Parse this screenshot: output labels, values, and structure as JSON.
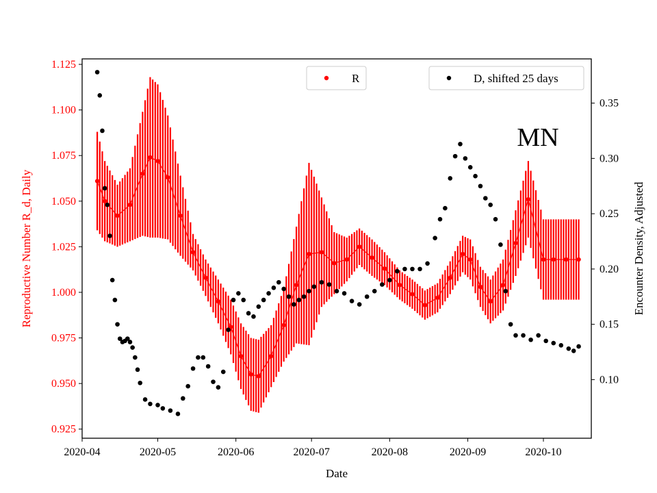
{
  "chart_data": {
    "type": "scatter",
    "xlabel": "Date",
    "ylabel_left": "Reproductive Number R_d, Daily",
    "ylabel_right": "Encounter Density, Adjusted",
    "annotation": "MN",
    "x_ticks": [
      "2020-04",
      "2020-05",
      "2020-06",
      "2020-07",
      "2020-08",
      "2020-09",
      "2020-10"
    ],
    "y_left_ticks": [
      "0.925",
      "0.950",
      "0.975",
      "1.000",
      "1.025",
      "1.050",
      "1.075",
      "1.100",
      "1.125"
    ],
    "y_right_ticks": [
      "0.10",
      "0.15",
      "0.20",
      "0.25",
      "0.30",
      "0.35"
    ],
    "ylim_left": [
      0.92,
      1.128
    ],
    "ylim_right": [
      0.047,
      0.39
    ],
    "xlim": [
      "2020-04-01",
      "2020-10-20"
    ],
    "grid": false,
    "colors": {
      "R": "#ff0000",
      "D": "#000000",
      "left_axis": "#ff0000"
    },
    "series": [
      {
        "name": "R",
        "axis": "left",
        "marker": "point with error bar",
        "legend": "top-center",
        "dates": [
          "2020-04-07",
          "2020-04-10",
          "2020-04-15",
          "2020-04-20",
          "2020-04-25",
          "2020-04-28",
          "2020-05-01",
          "2020-05-05",
          "2020-05-10",
          "2020-05-15",
          "2020-05-20",
          "2020-05-25",
          "2020-05-30",
          "2020-06-03",
          "2020-06-07",
          "2020-06-10",
          "2020-06-15",
          "2020-06-20",
          "2020-06-25",
          "2020-06-30",
          "2020-07-05",
          "2020-07-10",
          "2020-07-15",
          "2020-07-20",
          "2020-07-25",
          "2020-07-30",
          "2020-08-05",
          "2020-08-10",
          "2020-08-15",
          "2020-08-20",
          "2020-08-25",
          "2020-08-30",
          "2020-09-02",
          "2020-09-06",
          "2020-09-10",
          "2020-09-15",
          "2020-09-20",
          "2020-09-25",
          "2020-10-01",
          "2020-10-05",
          "2020-10-10",
          "2020-10-15"
        ],
        "values": [
          1.061,
          1.05,
          1.042,
          1.048,
          1.065,
          1.074,
          1.072,
          1.063,
          1.042,
          1.022,
          1.008,
          0.995,
          0.981,
          0.965,
          0.955,
          0.954,
          0.965,
          0.982,
          1.004,
          1.021,
          1.022,
          1.016,
          1.018,
          1.025,
          1.019,
          1.013,
          1.004,
          0.999,
          0.993,
          0.997,
          1.008,
          1.021,
          1.018,
          1.003,
          0.995,
          1.004,
          1.027,
          1.051,
          1.018,
          1.018,
          1.018,
          1.018
        ],
        "errors": [
          0.027,
          0.022,
          0.017,
          0.02,
          0.034,
          0.044,
          0.042,
          0.034,
          0.022,
          0.01,
          0.01,
          0.012,
          0.015,
          0.018,
          0.02,
          0.02,
          0.017,
          0.02,
          0.032,
          0.05,
          0.03,
          0.017,
          0.012,
          0.01,
          0.01,
          0.009,
          0.008,
          0.008,
          0.008,
          0.008,
          0.009,
          0.01,
          0.011,
          0.011,
          0.012,
          0.014,
          0.018,
          0.021,
          0.022,
          0.022,
          0.022,
          0.022
        ]
      },
      {
        "name": "D, shifted 25 days",
        "axis": "right",
        "marker": "point",
        "legend": "top-right",
        "dates": [
          "2020-04-07",
          "2020-04-08",
          "2020-04-09",
          "2020-04-10",
          "2020-04-11",
          "2020-04-12",
          "2020-04-13",
          "2020-04-14",
          "2020-04-15",
          "2020-04-16",
          "2020-04-17",
          "2020-04-18",
          "2020-04-19",
          "2020-04-20",
          "2020-04-21",
          "2020-04-22",
          "2020-04-23",
          "2020-04-24",
          "2020-04-26",
          "2020-04-28",
          "2020-05-01",
          "2020-05-03",
          "2020-05-06",
          "2020-05-09",
          "2020-05-11",
          "2020-05-13",
          "2020-05-15",
          "2020-05-17",
          "2020-05-19",
          "2020-05-21",
          "2020-05-23",
          "2020-05-25",
          "2020-05-27",
          "2020-05-29",
          "2020-05-31",
          "2020-06-02",
          "2020-06-04",
          "2020-06-06",
          "2020-06-08",
          "2020-06-10",
          "2020-06-12",
          "2020-06-14",
          "2020-06-16",
          "2020-06-18",
          "2020-06-20",
          "2020-06-22",
          "2020-06-24",
          "2020-06-26",
          "2020-06-28",
          "2020-06-30",
          "2020-07-02",
          "2020-07-05",
          "2020-07-08",
          "2020-07-11",
          "2020-07-14",
          "2020-07-17",
          "2020-07-20",
          "2020-07-23",
          "2020-07-26",
          "2020-07-29",
          "2020-08-01",
          "2020-08-04",
          "2020-08-07",
          "2020-08-10",
          "2020-08-13",
          "2020-08-16",
          "2020-08-19",
          "2020-08-21",
          "2020-08-23",
          "2020-08-25",
          "2020-08-27",
          "2020-08-29",
          "2020-08-31",
          "2020-09-02",
          "2020-09-04",
          "2020-09-06",
          "2020-09-08",
          "2020-09-10",
          "2020-09-12",
          "2020-09-14",
          "2020-09-16",
          "2020-09-18",
          "2020-09-20",
          "2020-09-23",
          "2020-09-26",
          "2020-09-29",
          "2020-10-02",
          "2020-10-05",
          "2020-10-08",
          "2020-10-11",
          "2020-10-13",
          "2020-10-15"
        ],
        "values": [
          0.378,
          0.357,
          0.325,
          0.273,
          0.258,
          0.23,
          0.19,
          0.172,
          0.15,
          0.137,
          0.134,
          0.135,
          0.137,
          0.134,
          0.129,
          0.12,
          0.109,
          0.097,
          0.082,
          0.078,
          0.077,
          0.074,
          0.072,
          0.069,
          0.083,
          0.094,
          0.11,
          0.12,
          0.12,
          0.112,
          0.098,
          0.093,
          0.107,
          0.145,
          0.172,
          0.178,
          0.172,
          0.16,
          0.157,
          0.166,
          0.172,
          0.178,
          0.183,
          0.188,
          0.182,
          0.175,
          0.168,
          0.172,
          0.175,
          0.18,
          0.184,
          0.188,
          0.186,
          0.18,
          0.178,
          0.171,
          0.168,
          0.175,
          0.18,
          0.186,
          0.19,
          0.198,
          0.2,
          0.2,
          0.2,
          0.205,
          0.228,
          0.245,
          0.255,
          0.282,
          0.302,
          0.313,
          0.3,
          0.292,
          0.284,
          0.275,
          0.264,
          0.258,
          0.245,
          0.222,
          0.18,
          0.15,
          0.14,
          0.14,
          0.136,
          0.14,
          0.135,
          0.133,
          0.131,
          0.128,
          0.126,
          0.13
        ]
      }
    ]
  }
}
